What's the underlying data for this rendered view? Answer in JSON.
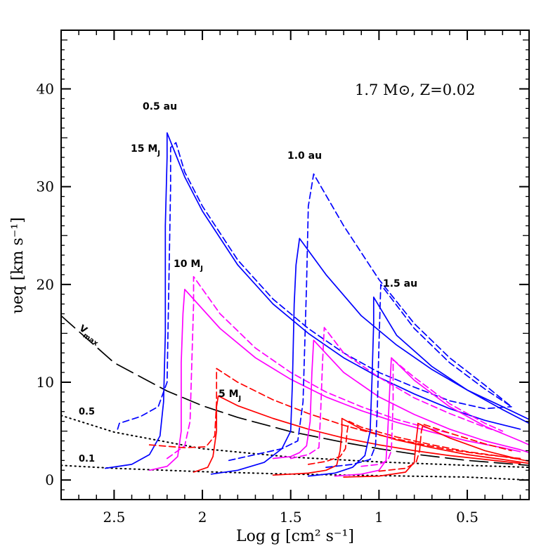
{
  "chart_data": {
    "type": "line",
    "title": "1.7 M⊙, Z=0.02",
    "xlabel": "Log g [cm² s⁻¹]",
    "ylabel": "υeq [km s⁻¹]",
    "xlim": [
      2.8,
      0.15
    ],
    "ylim": [
      -2,
      46
    ],
    "xticks": [
      2.5,
      2,
      1.5,
      1,
      0.5
    ],
    "xtick_labels": [
      "2.5",
      "2",
      "1.5",
      "1",
      "0.5"
    ],
    "yticks": [
      0,
      10,
      20,
      30,
      40
    ],
    "ytick_labels": [
      "0",
      "10",
      "20",
      "30",
      "40"
    ],
    "labels": {
      "vmax": "V",
      "vmax_sub": "max",
      "frac05": "0.5",
      "frac01": "0.1",
      "au05": "0.5 au",
      "au10": "1.0 au",
      "au15": "1.5 au",
      "mj15": "15 M",
      "mj10": "10 M",
      "mj5": "5 M",
      "mj_sub": "J"
    },
    "series": [
      {
        "name": "Vmax",
        "color": "#000000",
        "dash": "long",
        "x": [
          2.8,
          2.5,
          2.2,
          2.0,
          1.8,
          1.5,
          1.2,
          1.0,
          0.8,
          0.5,
          0.15
        ],
        "y": [
          16.8,
          12.0,
          9.1,
          7.6,
          6.4,
          4.95,
          3.85,
          3.2,
          2.65,
          2.0,
          1.5
        ]
      },
      {
        "name": "0.5 fraction",
        "color": "#000000",
        "dash": "dot",
        "x": [
          2.8,
          2.5,
          2.0,
          1.5,
          1.0,
          0.5,
          0.15
        ],
        "y": [
          6.6,
          4.9,
          3.2,
          2.35,
          1.85,
          1.5,
          1.3
        ]
      },
      {
        "name": "0.1 fraction",
        "color": "#000000",
        "dash": "dot",
        "x": [
          2.8,
          2.5,
          2.0,
          1.5,
          1.0,
          0.5,
          0.15
        ],
        "y": [
          1.5,
          1.2,
          0.85,
          0.6,
          0.45,
          0.3,
          0.0
        ]
      },
      {
        "name": "15 MJ, 0.5 au",
        "color": "#0000ff",
        "dash": "solid",
        "x": [
          2.55,
          2.4,
          2.3,
          2.24,
          2.22,
          2.21,
          2.21,
          2.2,
          2.2,
          2.1,
          2.0,
          1.8,
          1.6,
          1.4,
          1.2,
          1.0,
          0.8,
          0.6,
          0.4,
          0.2
        ],
        "y": [
          1.2,
          1.6,
          2.6,
          4.5,
          8.0,
          15.0,
          26.0,
          33.0,
          35.5,
          31.0,
          27.5,
          22.0,
          18.0,
          15.0,
          12.5,
          10.5,
          8.8,
          7.3,
          6.1,
          5.2
        ]
      },
      {
        "name": "15 MJ, 0.5 au (dashed)",
        "color": "#0000ff",
        "dash": "dash",
        "x": [
          2.48,
          2.47,
          2.35,
          2.25,
          2.2,
          2.19,
          2.18,
          2.18,
          2.15,
          2.1,
          2.0,
          1.8,
          1.6,
          1.4,
          1.2,
          1.0,
          0.8,
          0.6,
          0.4,
          0.25
        ],
        "y": [
          5.2,
          5.8,
          6.5,
          7.5,
          10.0,
          20.0,
          30.0,
          34.0,
          34.5,
          31.5,
          28.0,
          22.5,
          18.5,
          15.5,
          13.0,
          11.0,
          9.5,
          8.1,
          7.3,
          7.5
        ]
      },
      {
        "name": "10 MJ, 0.5 au",
        "color": "#ff00ff",
        "dash": "solid",
        "x": [
          2.3,
          2.2,
          2.14,
          2.12,
          2.12,
          2.11,
          2.1,
          1.9,
          1.7,
          1.5,
          1.3,
          1.1,
          0.9,
          0.7,
          0.5,
          0.3,
          0.2
        ],
        "y": [
          1.0,
          1.4,
          2.4,
          5.0,
          12.0,
          17.0,
          19.5,
          15.5,
          12.5,
          10.3,
          8.5,
          7.1,
          5.9,
          4.9,
          4.0,
          3.3,
          2.9
        ]
      },
      {
        "name": "10 MJ, 0.5 au (dashed)",
        "color": "#ff00ff",
        "dash": "dash",
        "x": [
          2.2,
          2.1,
          2.07,
          2.06,
          2.05,
          2.05,
          1.9,
          1.7,
          1.5,
          1.3,
          1.1,
          0.9,
          0.7,
          0.6
        ],
        "y": [
          2.2,
          3.5,
          6.0,
          12.0,
          18.0,
          20.8,
          17.0,
          13.5,
          11.0,
          9.0,
          7.5,
          6.2,
          5.2,
          4.8
        ]
      },
      {
        "name": "5 MJ, 0.5 au",
        "color": "#ff0000",
        "dash": "solid",
        "x": [
          2.05,
          1.97,
          1.94,
          1.92,
          1.92,
          1.91,
          1.8,
          1.6,
          1.4,
          1.2,
          1.0,
          0.8,
          0.6,
          0.4,
          0.2
        ],
        "y": [
          0.8,
          1.3,
          2.4,
          5.0,
          7.5,
          8.6,
          7.6,
          6.3,
          5.2,
          4.3,
          3.6,
          3.0,
          2.5,
          2.1,
          1.7
        ]
      },
      {
        "name": "5 MJ, 0.5 au (dashed)",
        "color": "#ff0000",
        "dash": "dash",
        "x": [
          2.3,
          2.1,
          1.98,
          1.93,
          1.92,
          1.92,
          1.8,
          1.6,
          1.4,
          1.2,
          1.0,
          0.8,
          0.6,
          0.4,
          0.2
        ],
        "y": [
          3.6,
          3.3,
          3.4,
          4.5,
          8.0,
          11.4,
          10.0,
          8.2,
          6.8,
          5.6,
          4.6,
          3.8,
          3.1,
          2.6,
          2.2
        ]
      },
      {
        "name": "15 MJ, 1.0 au",
        "color": "#0000ff",
        "dash": "solid",
        "x": [
          1.95,
          1.8,
          1.65,
          1.55,
          1.5,
          1.49,
          1.48,
          1.47,
          1.45,
          1.3,
          1.1,
          0.9,
          0.7,
          0.5,
          0.3,
          0.15
        ],
        "y": [
          0.6,
          1.0,
          1.8,
          3.2,
          5.0,
          10.0,
          18.0,
          22.0,
          24.7,
          21.0,
          16.8,
          13.8,
          11.3,
          9.2,
          7.5,
          6.2
        ]
      },
      {
        "name": "15 MJ, 1.0 au (dashed)",
        "color": "#0000ff",
        "dash": "dash",
        "x": [
          1.85,
          1.7,
          1.55,
          1.46,
          1.43,
          1.42,
          1.41,
          1.4,
          1.37,
          1.2,
          1.0,
          0.8,
          0.6,
          0.4,
          0.25
        ],
        "y": [
          2.0,
          2.6,
          3.2,
          4.0,
          8.0,
          14.0,
          20.0,
          28.0,
          31.3,
          26.0,
          20.5,
          16.0,
          12.5,
          9.7,
          7.5
        ]
      },
      {
        "name": "10 MJ, 1.0 au",
        "color": "#ff00ff",
        "dash": "solid",
        "x": [
          1.6,
          1.5,
          1.45,
          1.41,
          1.39,
          1.38,
          1.37,
          1.2,
          1.0,
          0.8,
          0.6,
          0.4,
          0.2,
          0.15
        ],
        "y": [
          2.2,
          2.4,
          2.8,
          3.5,
          6.0,
          11.0,
          14.3,
          11.0,
          8.5,
          6.7,
          5.2,
          4.0,
          3.1,
          2.8
        ]
      },
      {
        "name": "10 MJ, 1.0 au (dashed)",
        "color": "#ff00ff",
        "dash": "dash",
        "x": [
          1.5,
          1.4,
          1.34,
          1.33,
          1.32,
          1.31,
          1.2,
          1.0,
          0.8,
          0.6,
          0.4,
          0.3
        ],
        "y": [
          2.2,
          2.6,
          3.3,
          7.0,
          12.0,
          15.6,
          13.0,
          10.5,
          8.4,
          6.8,
          5.4,
          4.8
        ]
      },
      {
        "name": "5 MJ, 1.0 au",
        "color": "#ff0000",
        "dash": "solid",
        "x": [
          1.6,
          1.4,
          1.3,
          1.24,
          1.22,
          1.21,
          1.21,
          1.1,
          0.9,
          0.7,
          0.5,
          0.3,
          0.15
        ],
        "y": [
          0.5,
          0.7,
          1.0,
          1.5,
          3.0,
          5.0,
          6.3,
          5.2,
          4.1,
          3.3,
          2.6,
          2.1,
          1.7
        ]
      },
      {
        "name": "5 MJ, 1.0 au (dashed)",
        "color": "#ff0000",
        "dash": "dash",
        "x": [
          1.4,
          1.3,
          1.22,
          1.19,
          1.18,
          1.17,
          1.1,
          0.9,
          0.7,
          0.5,
          0.3,
          0.2
        ],
        "y": [
          1.6,
          1.9,
          2.4,
          3.2,
          5.0,
          6.0,
          5.4,
          4.4,
          3.6,
          2.9,
          2.4,
          2.1
        ]
      },
      {
        "name": "15 MJ, 1.5 au",
        "color": "#0000ff",
        "dash": "solid",
        "x": [
          1.4,
          1.25,
          1.15,
          1.08,
          1.05,
          1.04,
          1.03,
          1.03,
          0.9,
          0.7,
          0.5,
          0.3,
          0.15
        ],
        "y": [
          0.4,
          0.7,
          1.3,
          2.5,
          5.0,
          10.0,
          16.0,
          18.7,
          14.8,
          11.6,
          9.2,
          7.2,
          5.8
        ]
      },
      {
        "name": "15 MJ, 1.5 au (dashed)",
        "color": "#0000ff",
        "dash": "dash",
        "x": [
          1.3,
          1.15,
          1.05,
          1.02,
          1.01,
          1.0,
          0.99,
          0.8,
          0.6,
          0.4,
          0.25
        ],
        "y": [
          1.3,
          1.6,
          2.1,
          3.5,
          7.0,
          14.0,
          20.0,
          15.5,
          12.0,
          9.3,
          7.5
        ]
      },
      {
        "name": "10 MJ, 1.5 au",
        "color": "#ff00ff",
        "dash": "solid",
        "x": [
          1.25,
          1.1,
          1.0,
          0.96,
          0.95,
          0.94,
          0.93,
          0.8,
          0.6,
          0.4,
          0.2,
          0.15
        ],
        "y": [
          0.4,
          0.6,
          1.0,
          2.0,
          5.0,
          9.0,
          12.5,
          10.2,
          7.5,
          5.5,
          4.0,
          3.6
        ]
      },
      {
        "name": "10 MJ, 1.5 au (dashed)",
        "color": "#ff00ff",
        "dash": "dash",
        "x": [
          1.1,
          1.0,
          0.95,
          0.93,
          0.92,
          0.92,
          0.8,
          0.6,
          0.4,
          0.3
        ],
        "y": [
          1.4,
          1.6,
          2.0,
          3.0,
          8.0,
          12.3,
          10.5,
          7.8,
          5.8,
          5.0
        ]
      },
      {
        "name": "5 MJ, 1.5 au",
        "color": "#ff0000",
        "dash": "solid",
        "x": [
          1.2,
          1.0,
          0.85,
          0.8,
          0.79,
          0.78,
          0.78,
          0.6,
          0.4,
          0.2,
          0.15
        ],
        "y": [
          0.3,
          0.4,
          0.8,
          1.8,
          4.0,
          5.5,
          5.8,
          4.3,
          3.0,
          2.1,
          1.9
        ]
      },
      {
        "name": "5 MJ, 1.5 au (dashed)",
        "color": "#ff0000",
        "dash": "dash",
        "x": [
          1.0,
          0.85,
          0.79,
          0.77,
          0.76,
          0.75,
          0.6,
          0.4,
          0.25
        ],
        "y": [
          0.9,
          1.2,
          1.8,
          3.0,
          5.0,
          5.7,
          4.8,
          3.7,
          3.0
        ]
      }
    ]
  }
}
